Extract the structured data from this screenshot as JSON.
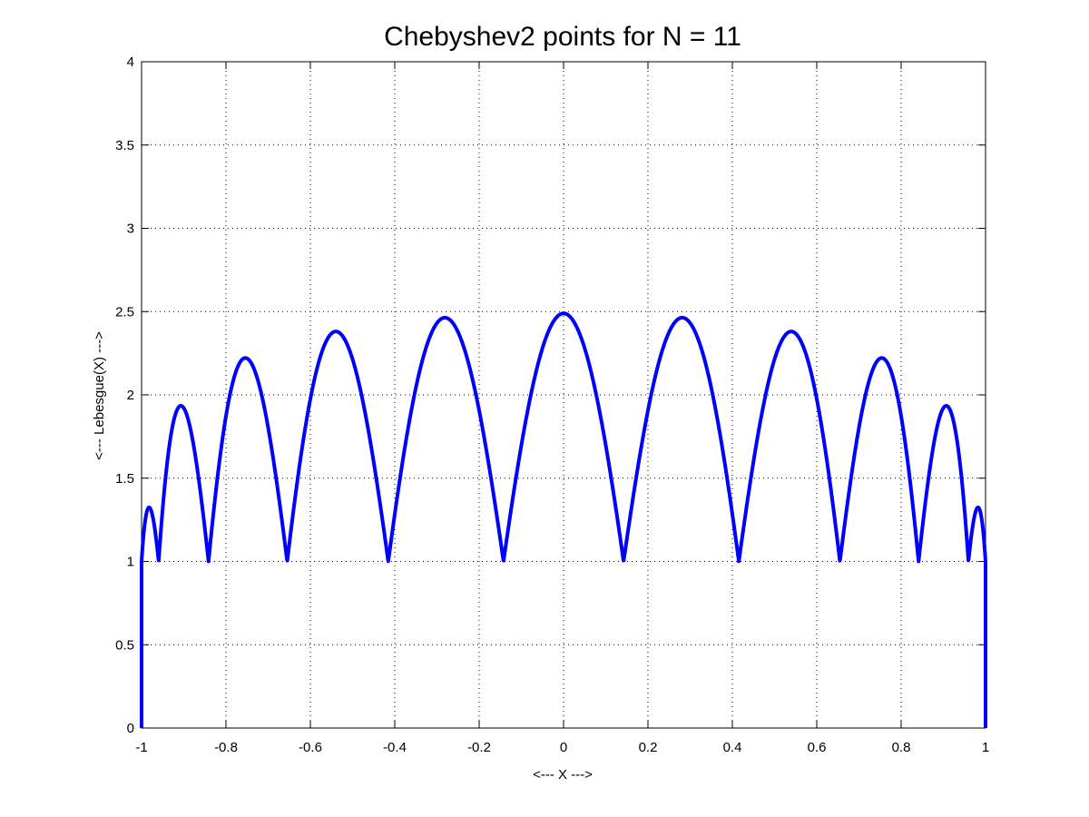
{
  "chart_data": {
    "type": "line",
    "title": "Chebyshev2 points for N = 11",
    "xlabel": "<--- X --->",
    "ylabel": "<--- Lebesgue(X) --->",
    "xlim": [
      -1,
      1
    ],
    "ylim": [
      0,
      4
    ],
    "xticks": [
      -1,
      -0.8,
      -0.6,
      -0.4,
      -0.2,
      0,
      0.2,
      0.4,
      0.6,
      0.8,
      1
    ],
    "xtick_labels": [
      "-1",
      "-0.8",
      "-0.6",
      "-0.4",
      "-0.2",
      "0",
      "0.2",
      "0.4",
      "0.6",
      "0.8",
      "1"
    ],
    "yticks": [
      0,
      0.5,
      1,
      1.5,
      2,
      2.5,
      3,
      3.5,
      4
    ],
    "ytick_labels": [
      "0",
      "0.5",
      "1",
      "1.5",
      "2",
      "2.5",
      "3",
      "3.5",
      "4"
    ],
    "grid": true,
    "series_color": "#0000ff",
    "nodes": [
      -1,
      -0.9595,
      -0.8413,
      -0.6549,
      -0.4154,
      -0.1423,
      0.1423,
      0.4154,
      0.6549,
      0.8413,
      0.9595,
      1
    ],
    "peaks": [
      {
        "x": -0.975,
        "y": 1.32
      },
      {
        "x": -0.885,
        "y": 1.93
      },
      {
        "x": -0.705,
        "y": 2.21
      },
      {
        "x": -0.455,
        "y": 2.36
      },
      {
        "x": -0.155,
        "y": 2.42
      },
      {
        "x": 0.155,
        "y": 2.42
      },
      {
        "x": 0.455,
        "y": 2.36
      },
      {
        "x": 0.705,
        "y": 2.21
      },
      {
        "x": 0.885,
        "y": 1.93
      },
      {
        "x": 0.975,
        "y": 1.32
      }
    ],
    "minima": [
      {
        "x": -0.951,
        "y": 1.02
      },
      {
        "x": -0.809,
        "y": 1.02
      },
      {
        "x": -0.588,
        "y": 1.0
      },
      {
        "x": -0.309,
        "y": 1.02
      },
      {
        "x": 0,
        "y": 1.0
      },
      {
        "x": 0.309,
        "y": 1.02
      },
      {
        "x": 0.588,
        "y": 1.0
      },
      {
        "x": 0.809,
        "y": 1.02
      },
      {
        "x": 0.951,
        "y": 1.02
      }
    ]
  }
}
